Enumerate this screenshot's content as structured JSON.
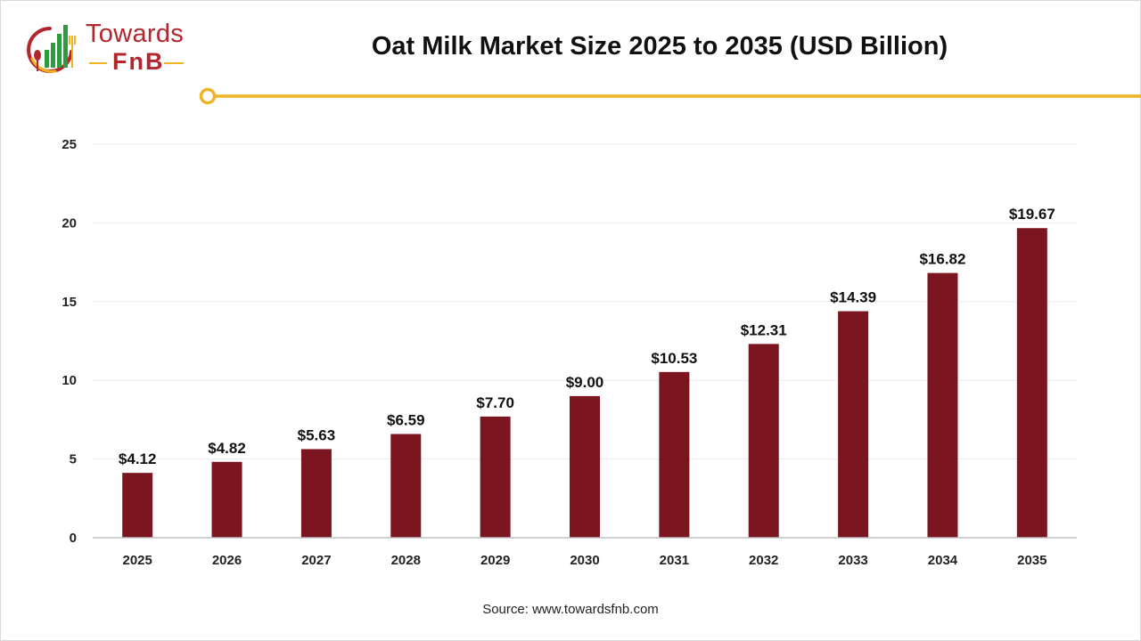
{
  "brand": {
    "name_line1": "Towards",
    "name_line2": "FnB",
    "colors": {
      "red": "#b3262d",
      "gold": "#f0b323",
      "green": "#2e9b3f"
    }
  },
  "header": {
    "title": "Oat Milk Market Size 2025 to 2035 (USD Billion)",
    "accent_color": "#f0b323"
  },
  "chart_data": {
    "type": "bar",
    "title": "Oat Milk Market Size 2025 to 2035 (USD Billion)",
    "categories": [
      "2025",
      "2026",
      "2027",
      "2028",
      "2029",
      "2030",
      "2031",
      "2032",
      "2033",
      "2034",
      "2035"
    ],
    "values": [
      4.12,
      4.82,
      5.63,
      6.59,
      7.7,
      9.0,
      10.53,
      12.31,
      14.39,
      16.82,
      19.67
    ],
    "data_labels": [
      "$4.12",
      "$4.82",
      "$5.63",
      "$6.59",
      "$7.70",
      "$9.00",
      "$10.53",
      "$12.31",
      "$14.39",
      "$16.82",
      "$19.67"
    ],
    "ylim": [
      0,
      25
    ],
    "yticks": [
      0,
      5,
      10,
      15,
      20,
      25
    ],
    "grid": true,
    "bar_color": "#7b1520",
    "xlabel": "",
    "ylabel": ""
  },
  "footer": {
    "source": "Source: www.towardsfnb.com"
  }
}
